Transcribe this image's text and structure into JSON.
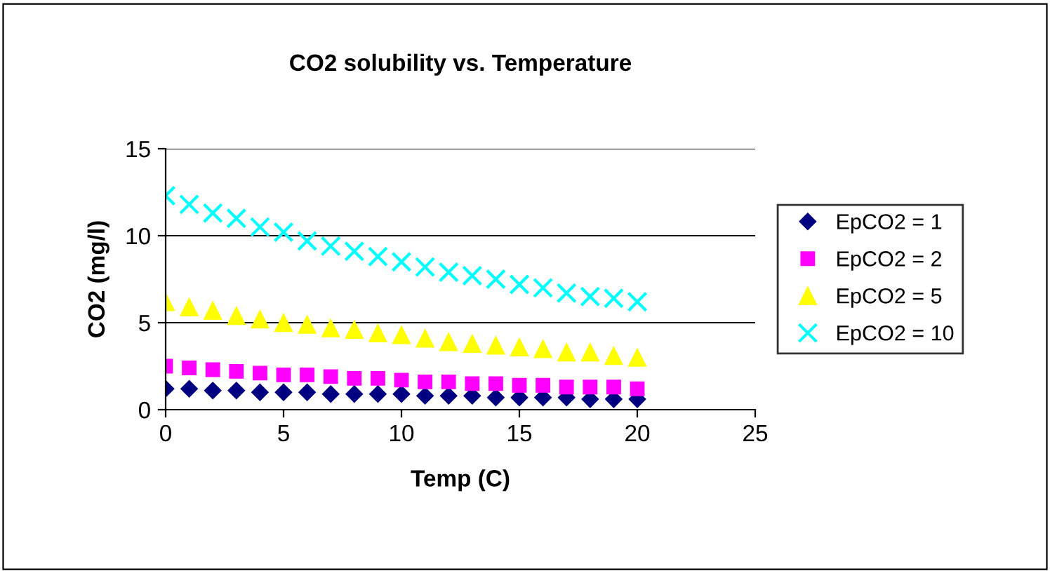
{
  "chart_data": {
    "type": "scatter",
    "title": "CO2 solubility vs. Temperature",
    "xlabel": "Temp (C)",
    "ylabel": "CO2 (mg/l)",
    "x": [
      0,
      1,
      2,
      3,
      4,
      5,
      6,
      7,
      8,
      9,
      10,
      11,
      12,
      13,
      14,
      15,
      16,
      17,
      18,
      19,
      20
    ],
    "series": [
      {
        "name": "EpCO2 = 1",
        "color": "#000080",
        "marker": "diamond",
        "values": [
          1.2,
          1.2,
          1.1,
          1.1,
          1.0,
          1.0,
          1.0,
          0.9,
          0.9,
          0.9,
          0.9,
          0.8,
          0.8,
          0.8,
          0.7,
          0.7,
          0.7,
          0.7,
          0.6,
          0.6,
          0.6
        ]
      },
      {
        "name": "EpCO2 = 2",
        "color": "#ff00ff",
        "marker": "square",
        "values": [
          2.5,
          2.4,
          2.3,
          2.2,
          2.1,
          2.0,
          2.0,
          1.9,
          1.8,
          1.8,
          1.7,
          1.6,
          1.6,
          1.5,
          1.5,
          1.4,
          1.4,
          1.3,
          1.3,
          1.3,
          1.2
        ]
      },
      {
        "name": "EpCO2 = 5",
        "color": "#ffff00",
        "marker": "triangle",
        "values": [
          6.2,
          5.9,
          5.7,
          5.4,
          5.2,
          5.0,
          4.9,
          4.7,
          4.6,
          4.4,
          4.3,
          4.1,
          3.9,
          3.8,
          3.7,
          3.6,
          3.5,
          3.3,
          3.3,
          3.1,
          3.0
        ]
      },
      {
        "name": "EpCO2 = 10",
        "color": "#00ffff",
        "marker": "cross",
        "values": [
          12.3,
          11.8,
          11.3,
          11.0,
          10.5,
          10.2,
          9.7,
          9.4,
          9.1,
          8.8,
          8.5,
          8.2,
          7.9,
          7.7,
          7.5,
          7.2,
          7.0,
          6.7,
          6.5,
          6.4,
          6.2
        ]
      }
    ],
    "xlim": [
      0,
      25
    ],
    "xticks": [
      0,
      5,
      10,
      15,
      20,
      25
    ],
    "ylim": [
      0,
      15
    ],
    "yticks": [
      0,
      5,
      10,
      15
    ],
    "grid": "y",
    "legend": "right"
  }
}
